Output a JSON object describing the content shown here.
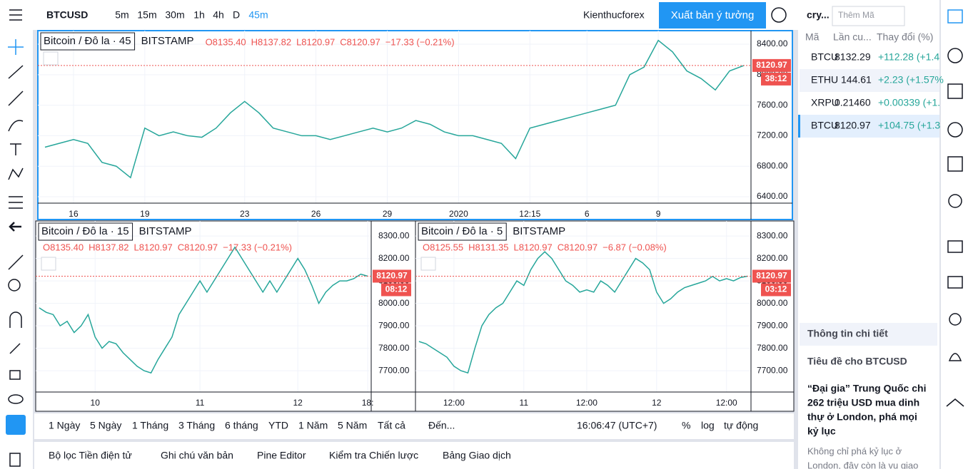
{
  "toolbar": {
    "symbol": "BTCUSD",
    "intervals": [
      "5m",
      "15m",
      "30m",
      "1h",
      "4h",
      "D",
      "45m"
    ],
    "account": "Kienthucforex",
    "publish": "Xuất bản ý tưởng"
  },
  "chart_data": [
    {
      "type": "line",
      "title": "Bitcoin / Đô la · 45",
      "exchange": "BITSTAMP",
      "ohlc": [
        "O8135.40",
        "H8137.82",
        "L8120.97",
        "C8120.97"
      ],
      "change": "−17.33 (−0.21%)",
      "last_price": 8120.97,
      "countdown": "38:12",
      "color": "#26a69a",
      "categories": [
        null,
        null,
        "16",
        null,
        null,
        null,
        null,
        "19",
        null,
        null,
        null,
        null,
        null,
        null,
        "23",
        null,
        null,
        null,
        null,
        "26",
        null,
        null,
        null,
        null,
        "29",
        null,
        null,
        null,
        null,
        "2020",
        null,
        null,
        null,
        null,
        "12:15",
        null,
        null,
        null,
        "6",
        null,
        null,
        null,
        null,
        "9",
        null,
        null,
        null,
        null,
        null,
        null
      ],
      "values": [
        7050,
        7100,
        7150,
        7100,
        6850,
        6800,
        6650,
        7300,
        7200,
        7250,
        7200,
        7180,
        7300,
        7500,
        7650,
        7500,
        7300,
        7250,
        7200,
        7200,
        7150,
        7200,
        7250,
        7300,
        7250,
        7300,
        7400,
        7350,
        7250,
        7200,
        7200,
        7150,
        7100,
        6900,
        7300,
        7350,
        7400,
        7450,
        7500,
        7550,
        7600,
        8000,
        8100,
        8450,
        8300,
        8050,
        7950,
        7800,
        8050,
        8121
      ],
      "ylim": [
        6316,
        8578
      ],
      "yticks": [
        {
          "value": 6400,
          "label": "6400.00"
        },
        {
          "value": 6800,
          "label": "6800.00"
        },
        {
          "value": 7200,
          "label": "7200.00"
        },
        {
          "value": 7600,
          "label": "7600.00"
        },
        {
          "value": 8000,
          "label": "8000.00"
        },
        {
          "value": 8400,
          "label": "8400.00"
        }
      ],
      "grid": true
    },
    {
      "type": "line",
      "title": "Bitcoin / Đô la · 15",
      "exchange": "BITSTAMP",
      "ohlc": [
        "O8135.40",
        "H8137.82",
        "L8120.97",
        "C8120.97"
      ],
      "change": "−17.33 (−0.21%)",
      "last_price": 8120.97,
      "countdown": "08:12",
      "color": "#26a69a",
      "categories": [
        null,
        null,
        null,
        null,
        null,
        null,
        null,
        null,
        "10",
        null,
        null,
        null,
        null,
        null,
        null,
        null,
        null,
        null,
        null,
        null,
        null,
        null,
        null,
        "11",
        null,
        null,
        null,
        null,
        null,
        null,
        null,
        null,
        null,
        null,
        null,
        null,
        null,
        "12",
        null,
        null,
        null,
        null,
        null,
        null,
        null,
        null,
        null,
        "18:"
      ],
      "values": [
        7980,
        7960,
        7950,
        7900,
        7920,
        7870,
        7900,
        7950,
        7850,
        7800,
        7830,
        7820,
        7780,
        7750,
        7720,
        7700,
        7690,
        7750,
        7800,
        7850,
        7950,
        8000,
        8050,
        8100,
        8050,
        8100,
        8150,
        8200,
        8250,
        8200,
        8150,
        8100,
        8050,
        8100,
        8050,
        8100,
        8150,
        8200,
        8150,
        8080,
        8000,
        8050,
        8080,
        8100,
        8100,
        8110,
        8130,
        8121
      ],
      "ylim": [
        7605,
        8367
      ],
      "yticks": [
        {
          "value": 7700,
          "label": "7700.00"
        },
        {
          "value": 7800,
          "label": "7800.00"
        },
        {
          "value": 7900,
          "label": "7900.00"
        },
        {
          "value": 8000,
          "label": "8000.00"
        },
        {
          "value": 8100,
          "label": "8100.00"
        },
        {
          "value": 8200,
          "label": "8200.00"
        },
        {
          "value": 8300,
          "label": "8300.00"
        }
      ],
      "grid": true
    },
    {
      "type": "line",
      "title": "Bitcoin / Đô la · 5",
      "exchange": "BITSTAMP",
      "ohlc": [
        "O8125.55",
        "H8131.35",
        "L8120.97",
        "C8120.97"
      ],
      "change": "−6.87 (−0.08%)",
      "last_price": 8120.97,
      "countdown": "03:12",
      "color": "#26a69a",
      "categories": [
        null,
        null,
        null,
        null,
        null,
        "12:00",
        null,
        null,
        null,
        null,
        null,
        null,
        null,
        null,
        null,
        "11",
        null,
        null,
        null,
        null,
        null,
        null,
        null,
        null,
        "12:00",
        null,
        null,
        null,
        null,
        null,
        null,
        null,
        null,
        null,
        "12",
        null,
        null,
        null,
        null,
        null,
        null,
        null,
        null,
        null,
        "12:00",
        null,
        null,
        null
      ],
      "values": [
        7830,
        7820,
        7800,
        7780,
        7760,
        7720,
        7700,
        7690,
        7800,
        7900,
        7950,
        7980,
        8000,
        8050,
        8100,
        8080,
        8150,
        8200,
        8230,
        8200,
        8150,
        8100,
        8080,
        8050,
        8060,
        8050,
        8100,
        8080,
        8050,
        8100,
        8150,
        8200,
        8180,
        8150,
        8050,
        8000,
        8020,
        8050,
        8070,
        8080,
        8090,
        8100,
        8120,
        8100,
        8110,
        8100,
        8115,
        8121
      ],
      "ylim": [
        7605,
        8367
      ],
      "yticks": [
        {
          "value": 7700,
          "label": "7700.00"
        },
        {
          "value": 7800,
          "label": "7800.00"
        },
        {
          "value": 7900,
          "label": "7900.00"
        },
        {
          "value": 8000,
          "label": "8000.00"
        },
        {
          "value": 8100,
          "label": "8100.00"
        },
        {
          "value": 8200,
          "label": "8200.00"
        },
        {
          "value": 8300,
          "label": "8300.00"
        }
      ],
      "grid": true
    }
  ],
  "ranges": [
    "1 Ngày",
    "5 Ngày",
    "1 Tháng",
    "3 Tháng",
    "6 tháng",
    "YTD",
    "1 Năm",
    "5 Năm",
    "Tất cả",
    "Đến..."
  ],
  "clock": "16:06:47 (UTC+7)",
  "scale_options": [
    "%",
    "log",
    "tự động"
  ],
  "tabs": [
    "Bộ lọc Tiền điện tử",
    "Ghi chú văn bản",
    "Pine Editor",
    "Kiểm tra Chiến lược",
    "Bảng Giao dịch"
  ],
  "watchlist": {
    "name": "cry...",
    "search": "Thêm Mã",
    "columns": [
      "Mã",
      "Lần cu...",
      "Thay đổi (%)"
    ],
    "rows": [
      [
        "BTCU",
        "8132.29",
        "+112.28 (+1.4"
      ],
      [
        "ETHU",
        "144.61",
        "+2.23 (+1.57%"
      ],
      [
        "XRPU",
        "0.21460",
        "+0.00339 (+1."
      ],
      [
        "BTCU",
        "8120.97",
        "+104.75 (+1.3"
      ]
    ]
  },
  "details": {
    "title": "Thông tin chi tiết",
    "news_header": "Tiêu đề cho BTCUSD",
    "headline": [
      "“Đại gia” Trung Quốc chi",
      "262 triệu USD mua dinh",
      "thự ở London, phá mọi",
      "kỷ lục"
    ],
    "snippet": [
      "Không chỉ phá kỷ lục ở",
      "London, đây còn là vụ giao"
    ]
  }
}
